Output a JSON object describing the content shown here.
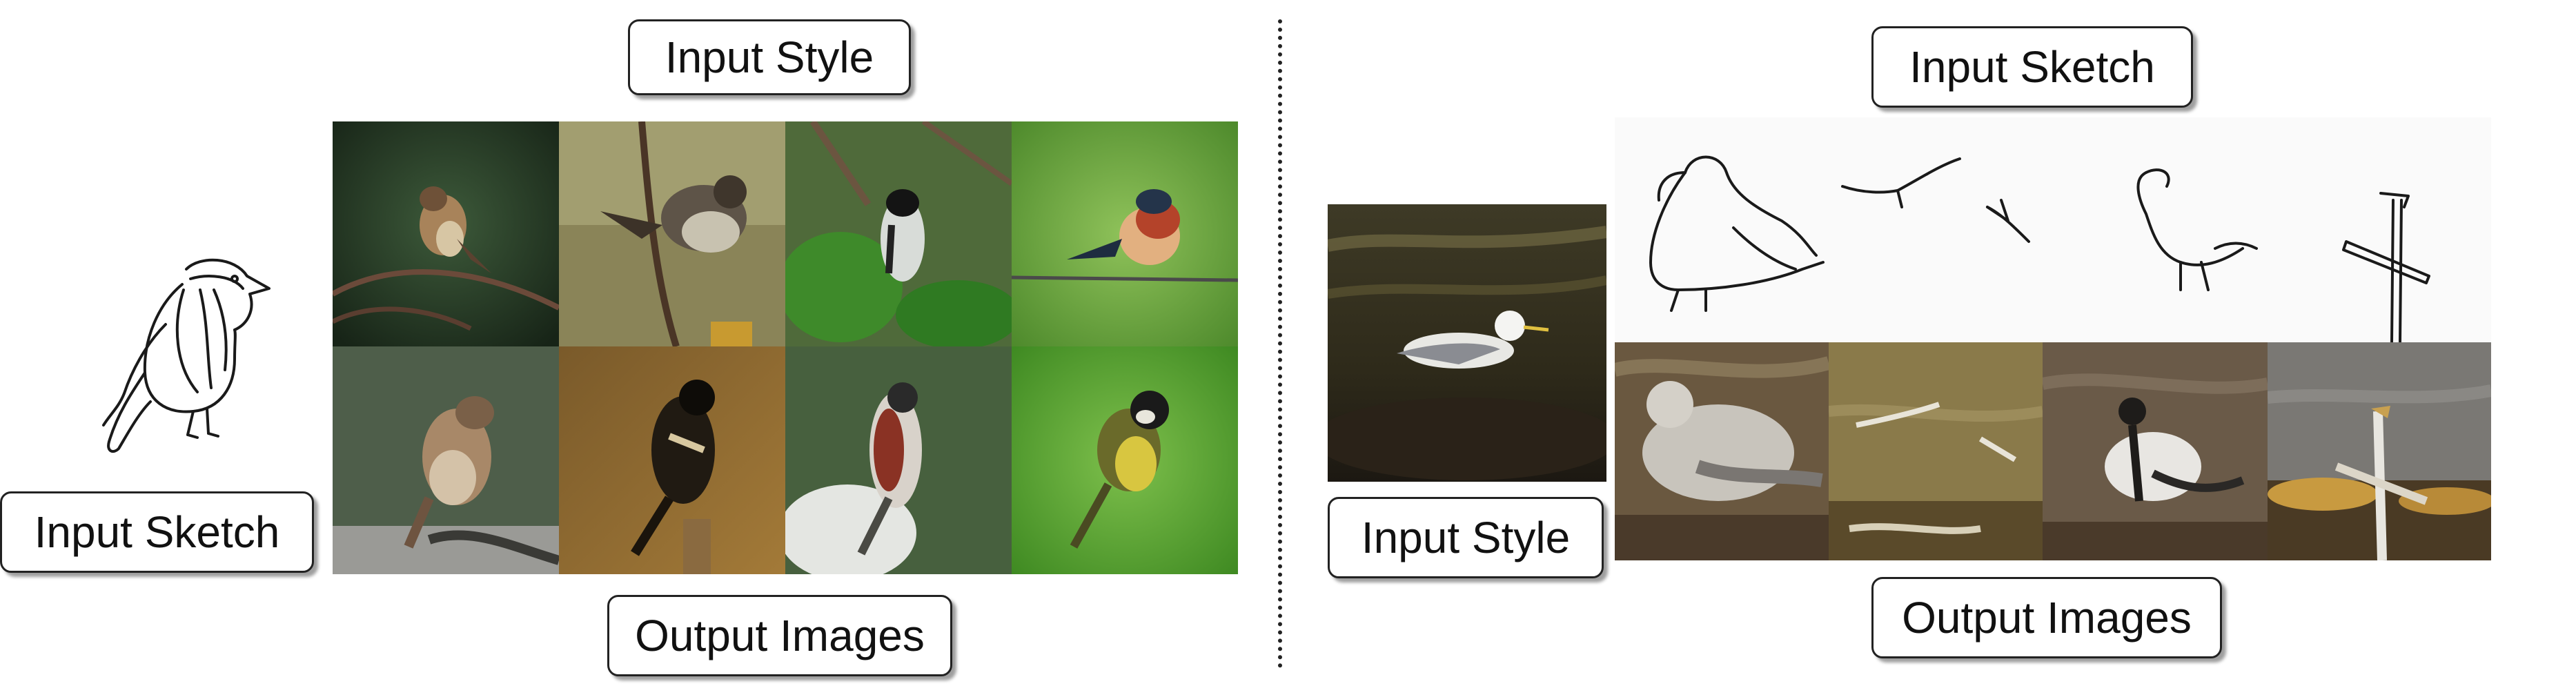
{
  "left_panel": {
    "input_style_label": "Input Style",
    "input_sketch_label": "Input Sketch",
    "output_images_label": "Output Images"
  },
  "right_panel": {
    "input_sketch_label": "Input Sketch",
    "input_style_label": "Input Style",
    "output_images_label": "Output Images"
  }
}
